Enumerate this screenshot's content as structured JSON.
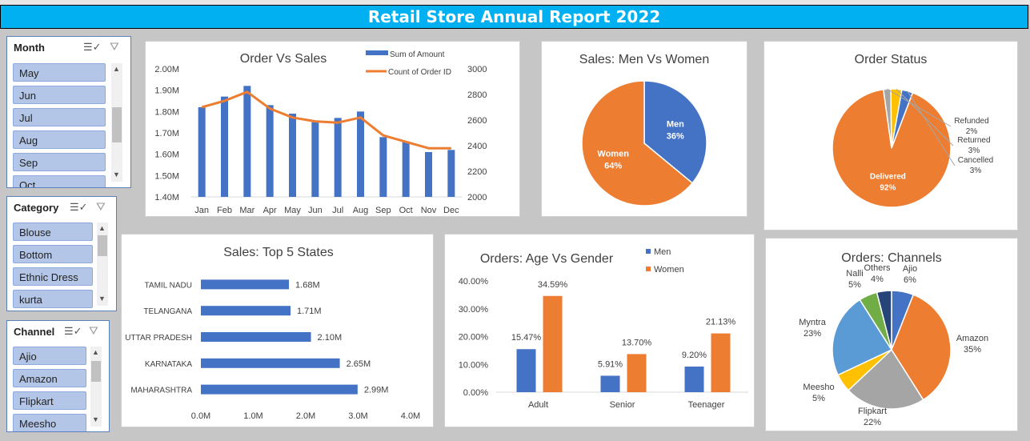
{
  "banner": {
    "title": "Retail Store Annual Report 2022"
  },
  "slicers": {
    "month": {
      "title": "Month",
      "items": [
        "May",
        "Jun",
        "Jul",
        "Aug",
        "Sep",
        "Oct"
      ]
    },
    "category": {
      "title": "Category",
      "items": [
        "Blouse",
        "Bottom",
        "Ethnic Dress",
        "kurta"
      ]
    },
    "channel": {
      "title": "Channel",
      "items": [
        "Ajio",
        "Amazon",
        "Flipkart",
        "Meesho"
      ]
    },
    "icons": {
      "multiselect": "multi-select-icon",
      "clear": "clear-filter-icon",
      "up": "scroll-up-icon",
      "down": "scroll-down-icon"
    }
  },
  "chart_data": [
    {
      "id": "order-vs-sales",
      "type": "bar+line",
      "title": "Order Vs Sales",
      "categories": [
        "Jan",
        "Feb",
        "Mar",
        "Apr",
        "May",
        "Jun",
        "Jul",
        "Aug",
        "Sep",
        "Oct",
        "Nov",
        "Dec"
      ],
      "series": [
        {
          "name": "Sum of Amount",
          "type": "bar",
          "axis": "left",
          "color": "#4472c4",
          "values": [
            1.82,
            1.87,
            1.92,
            1.83,
            1.79,
            1.75,
            1.77,
            1.8,
            1.68,
            1.66,
            1.61,
            1.62
          ]
        },
        {
          "name": "Count of Order ID",
          "type": "line",
          "axis": "right",
          "color": "#ed7d31",
          "values": [
            2700,
            2750,
            2820,
            2690,
            2620,
            2590,
            2580,
            2620,
            2480,
            2430,
            2380,
            2380
          ]
        }
      ],
      "left_axis": {
        "ticks": [
          "2.00M",
          "1.90M",
          "1.80M",
          "1.70M",
          "1.60M",
          "1.50M",
          "1.40M"
        ],
        "min": 1.4,
        "max": 2.0
      },
      "right_axis": {
        "ticks": [
          "3000",
          "2800",
          "2600",
          "2400",
          "2200",
          "2000"
        ],
        "min": 2000,
        "max": 3000
      },
      "legend": "top-right"
    },
    {
      "id": "sales-men-women",
      "type": "pie",
      "title": "Sales: Men Vs Women",
      "slices": [
        {
          "name": "Men",
          "value": 36,
          "label": "36%",
          "color": "#4472c4"
        },
        {
          "name": "Women",
          "value": 64,
          "label": "64%",
          "color": "#ed7d31"
        }
      ]
    },
    {
      "id": "order-status",
      "type": "pie",
      "title": "Order Status",
      "slices": [
        {
          "name": "Delivered",
          "value": 92,
          "label": "92%",
          "color": "#ed7d31"
        },
        {
          "name": "Refunded",
          "value": 2,
          "label": "2%",
          "color": "#a5a5a5"
        },
        {
          "name": "Returned",
          "value": 3,
          "label": "3%",
          "color": "#ffc000"
        },
        {
          "name": "Cancelled",
          "value": 3,
          "label": "3%",
          "color": "#4472c4"
        }
      ]
    },
    {
      "id": "top-5-states",
      "type": "bar",
      "orientation": "horizontal",
      "title": "Sales: Top 5 States",
      "categories": [
        "TAMIL NADU",
        "TELANGANA",
        "UTTAR PRADESH",
        "KARNATAKA",
        "MAHARASHTRA"
      ],
      "values": [
        1.68,
        1.71,
        2.1,
        2.65,
        2.99
      ],
      "labels": [
        "1.68M",
        "1.71M",
        "2.10M",
        "2.65M",
        "2.99M"
      ],
      "x_ticks": [
        "0.0M",
        "1.0M",
        "2.0M",
        "3.0M",
        "4.0M"
      ],
      "xlim": [
        0,
        4
      ],
      "color": "#4472c4"
    },
    {
      "id": "age-vs-gender",
      "type": "bar",
      "title": "Orders: Age Vs Gender",
      "categories": [
        "Adult",
        "Senior",
        "Teenager"
      ],
      "series": [
        {
          "name": "Men",
          "color": "#4472c4",
          "values": [
            15.47,
            5.91,
            9.2
          ],
          "labels": [
            "15.47%",
            "5.91%",
            "9.20%"
          ]
        },
        {
          "name": "Women",
          "color": "#ed7d31",
          "values": [
            34.59,
            13.7,
            21.13
          ],
          "labels": [
            "34.59%",
            "13.70%",
            "21.13%"
          ]
        }
      ],
      "y_ticks": [
        "40.00%",
        "30.00%",
        "20.00%",
        "10.00%",
        "0.00%"
      ],
      "ylim": [
        0,
        40
      ],
      "legend": "top-right"
    },
    {
      "id": "orders-channels",
      "type": "pie",
      "title": "Orders: Channels",
      "slices": [
        {
          "name": "Ajio",
          "value": 6,
          "label": "6%",
          "color": "#4472c4"
        },
        {
          "name": "Amazon",
          "value": 35,
          "label": "35%",
          "color": "#ed7d31"
        },
        {
          "name": "Flipkart",
          "value": 22,
          "label": "22%",
          "color": "#a5a5a5"
        },
        {
          "name": "Meesho",
          "value": 5,
          "label": "5%",
          "color": "#ffc000"
        },
        {
          "name": "Myntra",
          "value": 23,
          "label": "23%",
          "color": "#5b9bd5"
        },
        {
          "name": "Nalli",
          "value": 5,
          "label": "5%",
          "color": "#70ad47"
        },
        {
          "name": "Others",
          "value": 4,
          "label": "4%",
          "color": "#264478"
        }
      ]
    }
  ]
}
